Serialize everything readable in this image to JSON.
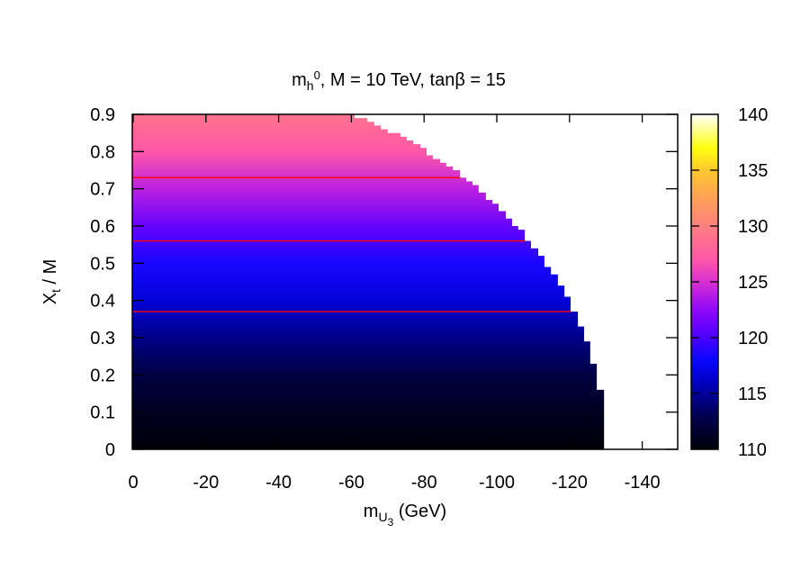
{
  "chart_data": {
    "type": "heatmap",
    "title": {
      "main": "m",
      "sub": "h",
      "sup": "0",
      "rest": ",  M = 10 TeV,  tanβ = 15"
    },
    "xlabel": {
      "main": "m",
      "sub": "U",
      "subsub": "3",
      "rest": " (GeV)"
    },
    "ylabel": {
      "main": "X",
      "sub": "t",
      "rest": " / M"
    },
    "xlim": [
      0,
      -150
    ],
    "ylim": [
      0,
      0.9
    ],
    "xticks": [
      "0",
      "-20",
      "-40",
      "-60",
      "-80",
      "-100",
      "-120",
      "-140"
    ],
    "xtick_values": [
      0,
      -20,
      -40,
      -60,
      -80,
      -100,
      -120,
      -140
    ],
    "yticks": [
      "0",
      "0.1",
      "0.2",
      "0.3",
      "0.4",
      "0.5",
      "0.6",
      "0.7",
      "0.8",
      "0.9"
    ],
    "ytick_values": [
      0,
      0.1,
      0.2,
      0.3,
      0.4,
      0.5,
      0.6,
      0.7,
      0.8,
      0.9
    ],
    "colorbar": {
      "range": [
        110,
        140
      ],
      "ticks": [
        "110",
        "115",
        "120",
        "125",
        "130",
        "135",
        "140"
      ],
      "tick_values": [
        110,
        115,
        120,
        125,
        130,
        135,
        140
      ],
      "palette": [
        {
          "v": 110,
          "c": "#000008"
        },
        {
          "v": 113,
          "c": "#000050"
        },
        {
          "v": 116,
          "c": "#0000c0"
        },
        {
          "v": 118,
          "c": "#0808ff"
        },
        {
          "v": 120,
          "c": "#4a00ff"
        },
        {
          "v": 122.5,
          "c": "#9008f8"
        },
        {
          "v": 125,
          "c": "#d830d0"
        },
        {
          "v": 127,
          "c": "#ff58a8"
        },
        {
          "v": 130,
          "c": "#ff8080"
        },
        {
          "v": 133,
          "c": "#ffa850"
        },
        {
          "v": 135,
          "c": "#ffc830"
        },
        {
          "v": 137,
          "c": "#ffff10"
        },
        {
          "v": 140,
          "c": "#ffffff"
        }
      ]
    },
    "mass_profile": [
      {
        "xt": 0,
        "mh": 110
      },
      {
        "xt": 0.1,
        "mh": 111
      },
      {
        "xt": 0.2,
        "mh": 112.5
      },
      {
        "xt": 0.3,
        "mh": 114.5
      },
      {
        "xt": 0.4,
        "mh": 116.8
      },
      {
        "xt": 0.5,
        "mh": 118.5
      },
      {
        "xt": 0.6,
        "mh": 121
      },
      {
        "xt": 0.7,
        "mh": 124
      },
      {
        "xt": 0.8,
        "mh": 127
      },
      {
        "xt": 0.9,
        "mh": 129
      }
    ],
    "boundary": [
      [
        0.9,
        -60.9
      ],
      [
        0.89,
        -64.4
      ],
      [
        0.88,
        -66.3
      ],
      [
        0.87,
        -68.1
      ],
      [
        0.86,
        -70.0
      ],
      [
        0.85,
        -73.5
      ],
      [
        0.84,
        -75.2
      ],
      [
        0.83,
        -77.0
      ],
      [
        0.82,
        -79.0
      ],
      [
        0.81,
        -80.7
      ],
      [
        0.79,
        -82.4
      ],
      [
        0.78,
        -84.4
      ],
      [
        0.77,
        -86.1
      ],
      [
        0.76,
        -87.9
      ],
      [
        0.75,
        -89.9
      ],
      [
        0.73,
        -91.6
      ],
      [
        0.72,
        -93.3
      ],
      [
        0.71,
        -95.0
      ],
      [
        0.69,
        -97.0
      ],
      [
        0.67,
        -98.8
      ],
      [
        0.66,
        -100.5
      ],
      [
        0.64,
        -102.5
      ],
      [
        0.62,
        -104.2
      ],
      [
        0.6,
        -105.9
      ],
      [
        0.59,
        -107.7
      ],
      [
        0.56,
        -109.4
      ],
      [
        0.54,
        -111.4
      ],
      [
        0.52,
        -113.1
      ],
      [
        0.49,
        -114.9
      ],
      [
        0.47,
        -116.8
      ],
      [
        0.44,
        -118.6
      ],
      [
        0.41,
        -120.3
      ],
      [
        0.37,
        -122.3
      ],
      [
        0.33,
        -124.0
      ],
      [
        0.29,
        -125.7
      ],
      [
        0.23,
        -127.5
      ],
      [
        0.16,
        -129.5
      ]
    ],
    "contour_lines": [
      {
        "xt": 0.73,
        "color": "#ff0000"
      },
      {
        "xt": 0.56,
        "color": "#ff0000"
      },
      {
        "xt": 0.37,
        "color": "#ff0000"
      }
    ]
  }
}
